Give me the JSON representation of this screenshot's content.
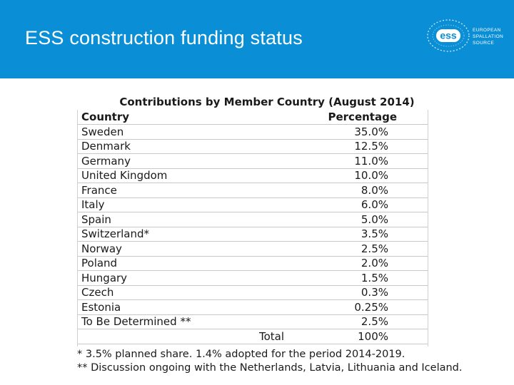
{
  "slide": {
    "title": "ESS construction funding status",
    "header_color": "#0a8fd6"
  },
  "logo": {
    "mark_text": "ess",
    "lines": [
      "EUROPEAN",
      "SPALLATION",
      "SOURCE"
    ]
  },
  "table": {
    "title": "Contributions by Member Country (August 2014)",
    "headers": {
      "country": "Country",
      "percentage": "Percentage"
    },
    "rows": [
      {
        "country": "Sweden",
        "percentage": "35.0%"
      },
      {
        "country": "Denmark",
        "percentage": "12.5%"
      },
      {
        "country": "Germany",
        "percentage": "11.0%"
      },
      {
        "country": "United Kingdom",
        "percentage": "10.0%"
      },
      {
        "country": "France",
        "percentage": "8.0%"
      },
      {
        "country": "Italy",
        "percentage": "6.0%"
      },
      {
        "country": "Spain",
        "percentage": "5.0%"
      },
      {
        "country": "Switzerland*",
        "percentage": "3.5%"
      },
      {
        "country": "Norway",
        "percentage": "2.5%"
      },
      {
        "country": "Poland",
        "percentage": "2.0%"
      },
      {
        "country": "Hungary",
        "percentage": "1.5%"
      },
      {
        "country": "Czech",
        "percentage": "0.3%"
      },
      {
        "country": "Estonia",
        "percentage": "0.25%"
      },
      {
        "country": "To Be Determined **",
        "percentage": "2.5%"
      }
    ],
    "total": {
      "label": "Total",
      "value": "100%"
    }
  },
  "notes": {
    "note1": "* 3.5% planned share. 1.4% adopted for the period 2014-2019.",
    "note2": "** Discussion ongoing with the Netherlands, Latvia, Lithuania and Iceland."
  }
}
